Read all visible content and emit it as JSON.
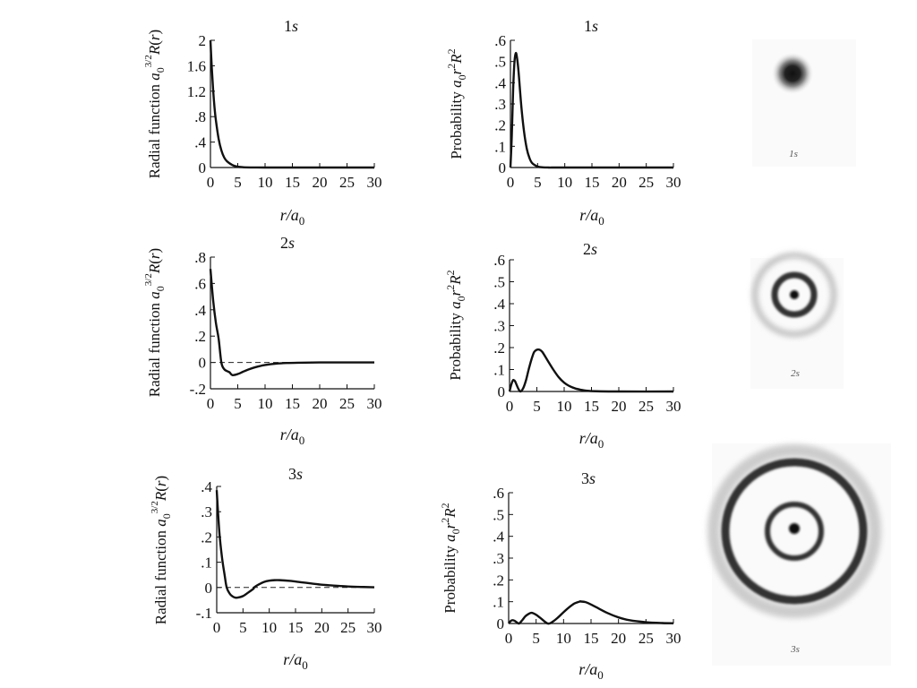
{
  "chart_data": [
    {
      "type": "line",
      "panel": "radial-1s",
      "title": "1s",
      "xlabel": "r/a0",
      "ylabel": "Radial function a0^(3/2) R(r)",
      "xlim": [
        0,
        30
      ],
      "ylim": [
        0,
        2
      ],
      "xticks": [
        "0",
        "5",
        "10",
        "15",
        "20",
        "25",
        "30"
      ],
      "yticks": [
        "0",
        ".4",
        ".8",
        "1.2",
        "1.6",
        "2"
      ],
      "zero_line": false,
      "series": [
        {
          "x": [
            0,
            0.25,
            0.5,
            0.75,
            1,
            1.5,
            2,
            2.5,
            3,
            4,
            5,
            6,
            8,
            10,
            15,
            20,
            25,
            30
          ],
          "y": [
            2,
            1.56,
            1.21,
            0.94,
            0.74,
            0.45,
            0.27,
            0.16,
            0.1,
            0.04,
            0.013,
            0.005,
            0.001,
            0,
            0,
            0,
            0,
            0
          ]
        }
      ]
    },
    {
      "type": "line",
      "panel": "probability-1s",
      "title": "1s",
      "xlabel": "r/a0",
      "ylabel": "Probability a0 r^2 R^2",
      "xlim": [
        0,
        30
      ],
      "ylim": [
        0,
        0.6
      ],
      "xticks": [
        "0",
        "5",
        "10",
        "15",
        "20",
        "25",
        "30"
      ],
      "yticks": [
        "0",
        ".1",
        ".2",
        ".3",
        ".4",
        ".5",
        ".6"
      ],
      "zero_line": false,
      "series": [
        {
          "x": [
            0,
            0.25,
            0.5,
            0.75,
            1,
            1.25,
            1.5,
            2,
            2.5,
            3,
            3.5,
            4,
            5,
            6,
            7,
            8,
            10,
            15,
            20,
            30
          ],
          "y": [
            0,
            0.15,
            0.37,
            0.5,
            0.54,
            0.51,
            0.45,
            0.29,
            0.17,
            0.09,
            0.045,
            0.021,
            0.005,
            0.001,
            0,
            0,
            0,
            0,
            0,
            0
          ]
        }
      ]
    },
    {
      "type": "line",
      "panel": "radial-2s",
      "title": "2s",
      "xlabel": "r/a0",
      "ylabel": "Radial function a0^(3/2) R(r)",
      "xlim": [
        0,
        30
      ],
      "ylim": [
        -0.2,
        0.8
      ],
      "xticks": [
        "0",
        "5",
        "10",
        "15",
        "20",
        "25",
        "30"
      ],
      "yticks": [
        "-.2",
        "0",
        ".2",
        ".4",
        ".6",
        ".8"
      ],
      "zero_line": true,
      "series": [
        {
          "x": [
            0,
            0.5,
            1,
            1.5,
            2,
            2.5,
            3,
            3.5,
            4,
            5,
            6,
            7,
            8,
            9,
            10,
            12,
            14,
            16,
            20,
            25,
            30
          ],
          "y": [
            0.71,
            0.47,
            0.3,
            0.18,
            0,
            -0.05,
            -0.065,
            -0.075,
            -0.096,
            -0.088,
            -0.07,
            -0.053,
            -0.039,
            -0.028,
            -0.019,
            -0.009,
            -0.004,
            -0.002,
            0,
            0,
            0
          ]
        }
      ]
    },
    {
      "type": "line",
      "panel": "probability-2s",
      "title": "2s",
      "xlabel": "r/a0",
      "ylabel": "Probability a0 r^2 R^2",
      "xlim": [
        0,
        30
      ],
      "ylim": [
        0,
        0.6
      ],
      "xticks": [
        "0",
        "5",
        "10",
        "15",
        "20",
        "25",
        "30"
      ],
      "yticks": [
        "0",
        ".1",
        ".2",
        ".3",
        ".4",
        ".5",
        ".6"
      ],
      "zero_line": false,
      "series": [
        {
          "x": [
            0,
            0.3,
            0.6,
            0.76,
            1,
            1.3,
            1.6,
            2,
            2.5,
            3,
            3.5,
            4,
            4.5,
            5,
            5.24,
            5.5,
            6,
            7,
            8,
            9,
            10,
            11,
            12,
            13,
            14,
            16,
            20,
            30
          ],
          "y": [
            0,
            0.03,
            0.05,
            0.052,
            0.047,
            0.03,
            0.013,
            0,
            0.015,
            0.05,
            0.1,
            0.145,
            0.18,
            0.19,
            0.191,
            0.19,
            0.18,
            0.14,
            0.1,
            0.065,
            0.04,
            0.024,
            0.014,
            0.008,
            0.004,
            0.001,
            0,
            0
          ]
        }
      ]
    },
    {
      "type": "line",
      "panel": "radial-3s",
      "title": "3s",
      "xlabel": "r/a0",
      "ylabel": "Radial function a0^(3/2) R(r)",
      "xlim": [
        0,
        30
      ],
      "ylim": [
        -0.1,
        0.4
      ],
      "xticks": [
        "0",
        "5",
        "10",
        "15",
        "20",
        "25",
        "30"
      ],
      "yticks": [
        "-.1",
        "0",
        ".1",
        ".2",
        ".3",
        ".4"
      ],
      "zero_line": true,
      "series": [
        {
          "x": [
            0,
            0.5,
            1,
            1.5,
            1.9,
            2.5,
            3,
            3.5,
            4,
            5,
            6,
            7,
            7.1,
            8,
            9,
            10,
            11,
            12,
            14,
            16,
            18,
            20,
            22,
            25,
            28,
            30
          ],
          "y": [
            0.385,
            0.22,
            0.12,
            0.05,
            0,
            -0.025,
            -0.035,
            -0.04,
            -0.04,
            -0.034,
            -0.02,
            -0.005,
            0,
            0.012,
            0.022,
            0.027,
            0.029,
            0.029,
            0.026,
            0.021,
            0.016,
            0.011,
            0.008,
            0.004,
            0.002,
            0.001
          ]
        }
      ]
    },
    {
      "type": "line",
      "panel": "probability-3s",
      "title": "3s",
      "xlabel": "r/a0",
      "ylabel": "Probability a0 r^2 R^2",
      "xlim": [
        0,
        30
      ],
      "ylim": [
        0,
        0.6
      ],
      "xticks": [
        "0",
        "5",
        "10",
        "15",
        "20",
        "25",
        "30"
      ],
      "yticks": [
        "0",
        ".1",
        ".2",
        ".3",
        ".4",
        ".5",
        ".6"
      ],
      "zero_line": false,
      "series": [
        {
          "x": [
            0,
            0.4,
            0.74,
            1.1,
            1.5,
            1.9,
            2.5,
            3,
            3.5,
            4.19,
            5,
            5.8,
            7.1,
            8,
            9,
            10,
            11,
            12,
            13,
            13.07,
            14,
            15,
            16,
            18,
            20,
            22,
            25,
            28,
            30
          ],
          "y": [
            0,
            0.012,
            0.015,
            0.012,
            0.005,
            0,
            0.016,
            0.032,
            0.042,
            0.049,
            0.04,
            0.025,
            0,
            0.008,
            0.028,
            0.052,
            0.074,
            0.092,
            0.101,
            0.101,
            0.098,
            0.087,
            0.074,
            0.048,
            0.028,
            0.015,
            0.006,
            0.002,
            0.001
          ]
        }
      ]
    }
  ],
  "orbitals": [
    {
      "label": "1s"
    },
    {
      "label": "2s"
    },
    {
      "label": "3s"
    }
  ]
}
